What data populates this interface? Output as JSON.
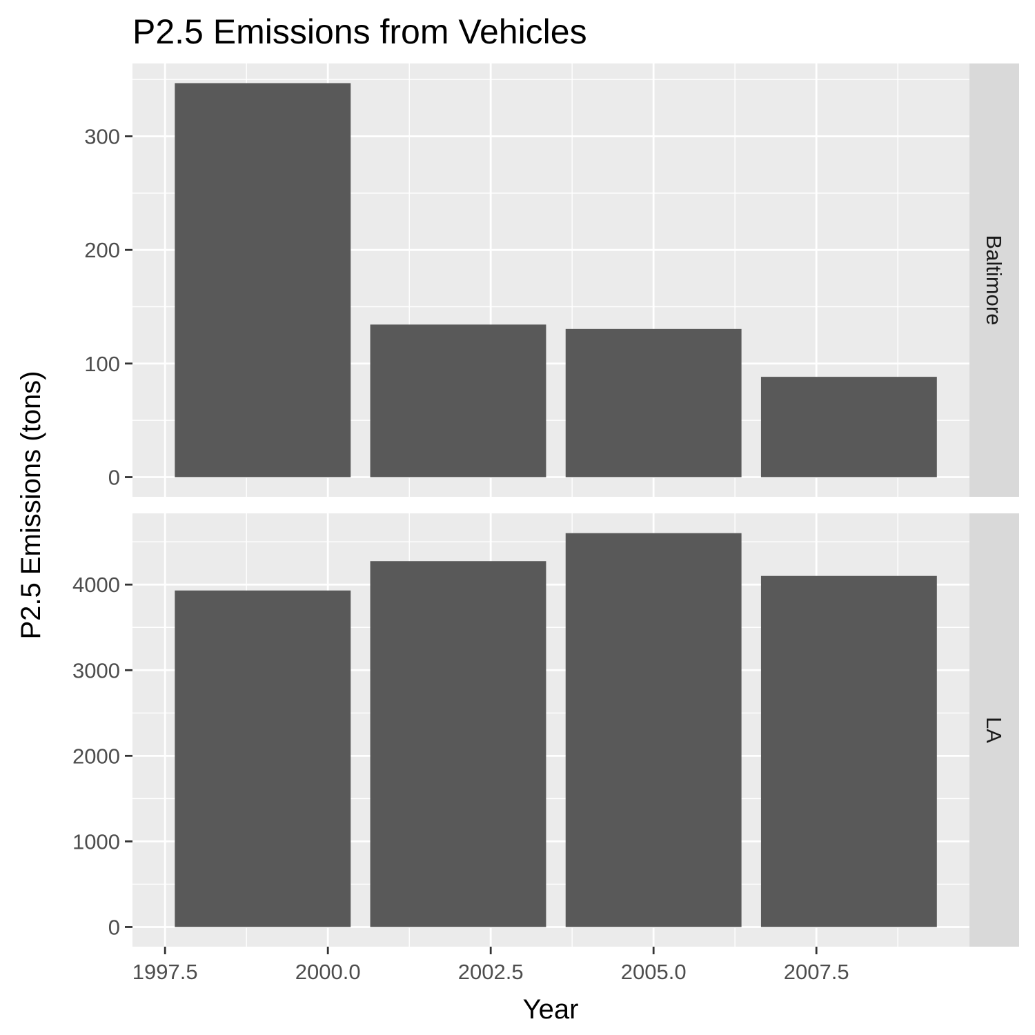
{
  "chart_data": {
    "type": "bar",
    "title": "P2.5 Emissions from Vehicles",
    "xlabel": "Year",
    "ylabel": "P2.5 Emissions (tons)",
    "x": [
      1999,
      2002,
      2005,
      2008
    ],
    "xlim": [
      1997.0,
      2009.85
    ],
    "x_ticks": [
      1997.5,
      2000.0,
      2002.5,
      2005.0,
      2007.5
    ],
    "x_tick_labels": [
      "1997.5",
      "2000.0",
      "2002.5",
      "2005.0",
      "2007.5"
    ],
    "bar_width_years": 2.7,
    "grid": true,
    "facets": [
      {
        "label": "Baltimore",
        "values": [
          346.8,
          134.3,
          130.4,
          88.3
        ],
        "ylim": [
          -17.3,
          364.1
        ],
        "y_ticks": [
          0,
          100,
          200,
          300
        ],
        "y_tick_labels": [
          "0",
          "100",
          "200",
          "300"
        ]
      },
      {
        "label": "LA",
        "values": [
          3931,
          4274,
          4601,
          4101
        ],
        "ylim": [
          -230,
          4832
        ],
        "y_ticks": [
          0,
          1000,
          2000,
          3000,
          4000
        ],
        "y_tick_labels": [
          "0",
          "1000",
          "2000",
          "3000",
          "4000"
        ]
      }
    ]
  },
  "colors": {
    "panel_background": "#ebebeb",
    "grid_major": "#ffffff",
    "bar_fill": "#595959",
    "strip_background": "#d9d9d9",
    "tick_text": "#4d4d4d",
    "axis_tick": "#333333"
  }
}
